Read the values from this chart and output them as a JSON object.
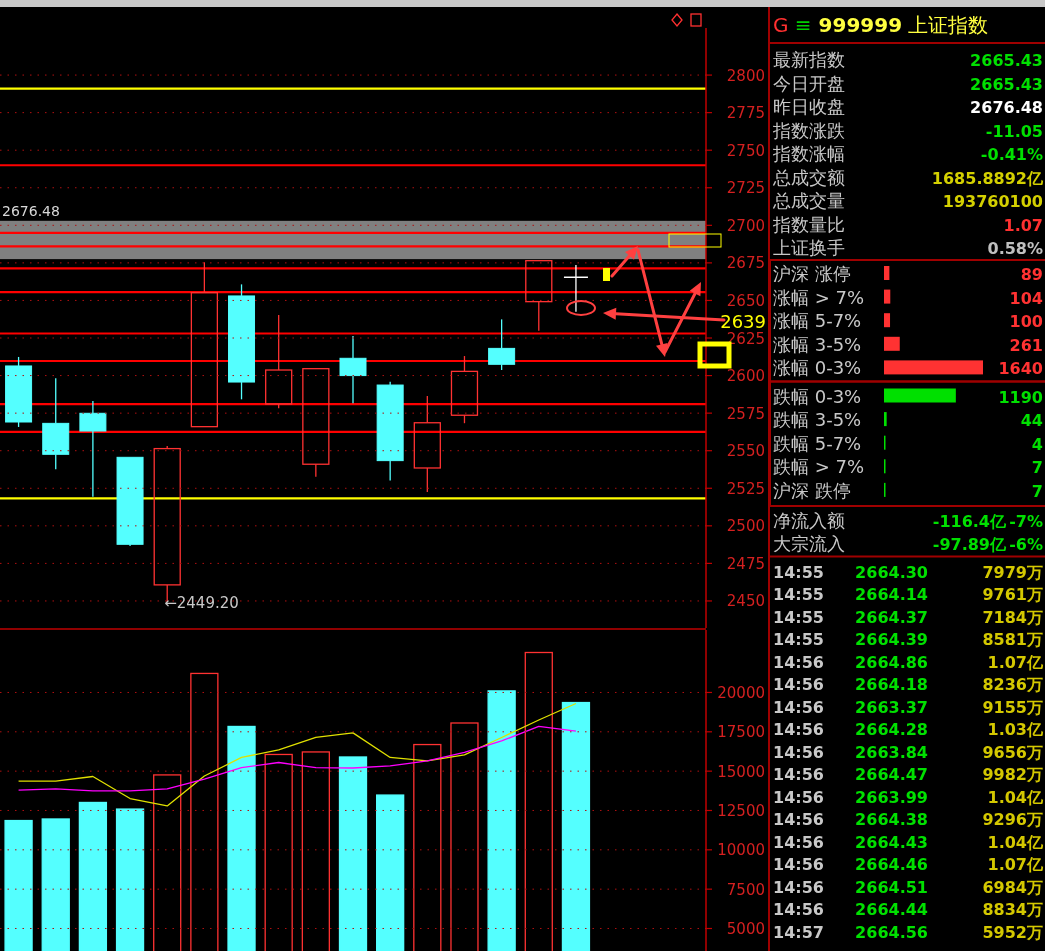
{
  "chart_data": [
    {
      "type": "candlestick",
      "categories": [
        null,
        null,
        null,
        null,
        null,
        null,
        null,
        null,
        null,
        null,
        null,
        null,
        null,
        null,
        null,
        null,
        null,
        null,
        null
      ],
      "ohlc": [
        [
          2606.4,
          2612.4,
          2565.8,
          2569.1
        ],
        [
          2568.2,
          2598.2,
          2537.6,
          2547.6
        ],
        [
          2574.9,
          2583.1,
          2519.4,
          2563.1
        ],
        [
          2545.6,
          2545.6,
          2486.6,
          2487.7
        ],
        [
          2460.7,
          2553.1,
          2449.2,
          2551.4
        ],
        [
          2566.0,
          2675.4,
          2566.0,
          2655.2
        ],
        [
          2653.0,
          2660.7,
          2584.2,
          2595.7
        ],
        [
          2581.1,
          2640.3,
          2578.2,
          2603.7
        ],
        [
          2541.0,
          2605.1,
          2532.7,
          2604.6
        ],
        [
          2611.5,
          2626.3,
          2581.6,
          2600.0
        ],
        [
          2593.7,
          2595.9,
          2530.1,
          2543.4
        ],
        [
          2538.5,
          2586.4,
          2522.5,
          2568.6
        ],
        [
          2573.6,
          2613.0,
          2568.3,
          2602.8
        ],
        [
          2618.1,
          2637.4,
          2603.7,
          2607.5
        ],
        [
          2649.2,
          2676.48,
          2629.9,
          2676.48
        ],
        [
          2665.43,
          2673.6,
          2642.5,
          2665.43
        ],
        null,
        null,
        null
      ],
      "colors": [
        "#54ffff",
        "#54ffff",
        "#54ffff",
        "#54ffff",
        "#ff3232",
        "#ff3232",
        "#54ffff",
        "#ff3232",
        "#ff3232",
        "#54ffff",
        "#54ffff",
        "#ff3232",
        "#ff3232",
        "#54ffff",
        "#ff3232",
        "#ffffff",
        null,
        null,
        null
      ],
      "ylim": [
        2432,
        2830
      ],
      "yticks": [
        2450,
        2475,
        2500,
        2525,
        2550,
        2575,
        2600,
        2625,
        2650,
        2675,
        2700,
        2725,
        2750,
        2775,
        2800
      ],
      "grid": "y",
      "bands": [
        {
          "axis": "y",
          "from": 2677.5,
          "to": 2703,
          "label": "2676.48",
          "color": "#808080"
        }
      ],
      "ref_lines": [
        {
          "axis": "y",
          "value": 2791,
          "color": "#ffff00"
        },
        {
          "axis": "y",
          "value": 2740,
          "color": "#ff0000"
        },
        {
          "axis": "y",
          "value": 2695,
          "color": "#ff0000"
        },
        {
          "axis": "y",
          "value": 2686,
          "color": "#ff0000"
        },
        {
          "axis": "y",
          "value": 2671.4,
          "color": "#ff0000"
        },
        {
          "axis": "y",
          "value": 2655.6,
          "color": "#ff0000"
        },
        {
          "axis": "y",
          "value": 2628,
          "color": "#ff0000"
        },
        {
          "axis": "y",
          "value": 2609.7,
          "color": "#ff0000"
        },
        {
          "axis": "y",
          "value": 2581,
          "color": "#ff0000"
        },
        {
          "axis": "y",
          "value": 2562.5,
          "color": "#ff0000"
        },
        {
          "axis": "y",
          "value": 2518.3,
          "color": "#ffff00"
        }
      ],
      "annotations": [
        "←2449.20",
        "2639"
      ]
    },
    {
      "type": "bar",
      "categories": [
        null,
        null,
        null,
        null,
        null,
        null,
        null,
        null,
        null,
        null,
        null,
        null,
        null,
        null,
        null,
        null,
        null,
        null,
        null
      ],
      "series": [
        {
          "type": "bar",
          "colors": [
            "#54ffff",
            "#54ffff",
            "#54ffff",
            "#54ffff",
            "#ff3232",
            "#ff3232",
            "#54ffff",
            "#ff3232",
            "#ff3232",
            "#54ffff",
            "#54ffff",
            "#ff3232",
            "#ff3232",
            "#54ffff",
            "#ff3232",
            "#54ffff",
            null,
            null,
            null
          ],
          "values": [
            11860,
            11960,
            13010,
            12590,
            14760,
            21210,
            17840,
            16060,
            16220,
            15900,
            13480,
            16690,
            18060,
            20100,
            22540,
            19360,
            null,
            null,
            null
          ]
        },
        {
          "type": "line",
          "color": "#e0e000",
          "values": [
            14370,
            14370,
            14660,
            13260,
            12790,
            14690,
            15870,
            16350,
            17140,
            17430,
            15870,
            15650,
            16030,
            17140,
            18250,
            19300,
            null,
            null,
            null
          ]
        },
        {
          "type": "line",
          "color": "#ff00ff",
          "values": [
            13800,
            13870,
            13740,
            13740,
            13870,
            14500,
            15230,
            15550,
            15230,
            15200,
            15330,
            15650,
            16190,
            16920,
            17840,
            17550,
            null,
            null,
            null
          ]
        }
      ],
      "ylim": [
        3570,
        23970
      ],
      "yticks": [
        5000,
        7500,
        10000,
        12500,
        15000,
        17500,
        20000
      ],
      "grid": "y"
    },
    {
      "type": "bar",
      "orientation": "horizontal",
      "categories": [
        "沪深 涨停",
        "涨幅 > 7%",
        "涨幅 5-7%",
        "涨幅 3-5%",
        "涨幅 0-3%",
        "跌幅 0-3%",
        "跌幅 3-5%",
        "跌幅 5-7%",
        "跌幅 > 7%",
        "沪深 跌停"
      ],
      "values": [
        89,
        104,
        100,
        261,
        1640,
        1190,
        44,
        4,
        7,
        7
      ],
      "colors": [
        "#ff3232",
        "#ff3232",
        "#ff3232",
        "#ff3232",
        "#ff3232",
        "#00e000",
        "#00e000",
        "#00e000",
        "#00e000",
        "#00e000"
      ],
      "data_labels": true
    },
    {
      "type": "other",
      "title": "G ≡ 999999 上证指数",
      "annotations": [
        "最新指数 2665.43",
        "今日开盘 2665.43",
        "昨日收盘 2676.48",
        "指数涨跌 -11.05",
        "指数涨幅 -0.41%",
        "总成交额 1685.8892亿",
        "总成交量 193760100",
        "指数量比 1.07",
        "上证换手 0.58%",
        "净流入额 -116.4亿 -7%",
        "大宗流入 -97.89亿 -6%",
        "14:55 2664.30 7979万",
        "14:55 2664.14 9761万",
        "14:55 2664.37 7184万",
        "14:55 2664.39 8581万",
        "14:56 2664.86 1.07亿",
        "14:56 2664.18 8236万",
        "14:56 2663.37 9155万",
        "14:56 2664.28 1.03亿",
        "14:56 2663.84 9656万",
        "14:56 2664.47 9982万",
        "14:56 2663.99 1.04亿",
        "14:56 2664.38 9296万",
        "14:56 2664.43 1.04亿",
        "14:56 2664.46 1.07亿",
        "14:56 2664.51 6984万",
        "14:56 2664.44 8834万",
        "14:57 2664.56 5952万"
      ],
      "colors": [
        "#00e000",
        "#00e000",
        "#ffffff",
        "#00e000",
        "#00e000",
        "#d4d000",
        "#d4d000",
        "#ff3030",
        "#c0c0c0",
        "#00e000",
        "#00e000",
        "#d4c800",
        "#d4c800",
        "#d4c800",
        "#d4c800",
        "#d4c800",
        "#d4c800",
        "#d4c800",
        "#d4c800",
        "#d4c800",
        "#d4c800",
        "#d4c800",
        "#d4c800",
        "#d4c800",
        "#d4c800",
        "#d4c800",
        "#d4c800",
        "#d4c800"
      ]
    }
  ]
}
